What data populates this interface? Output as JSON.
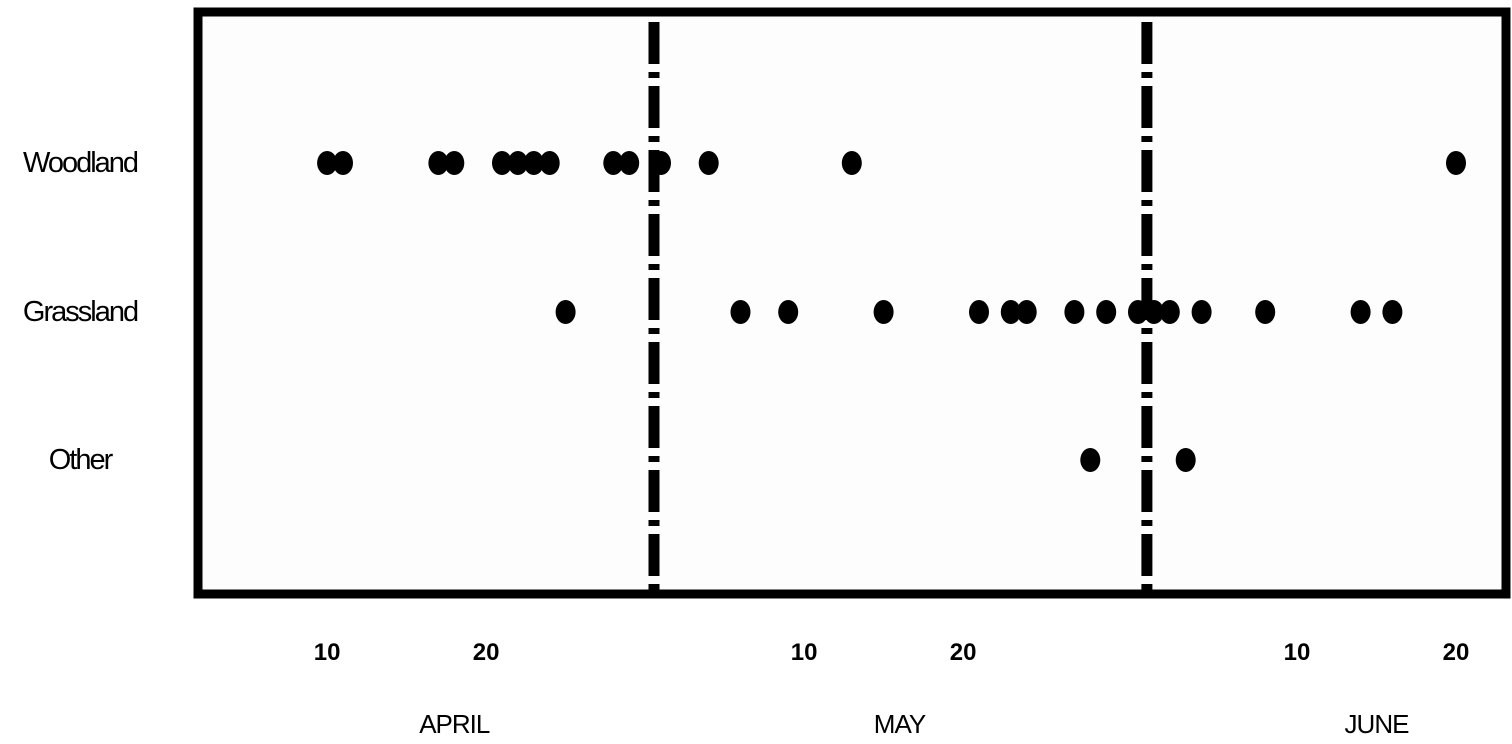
{
  "chart_data": {
    "type": "scatter",
    "title": "",
    "xlabel": "",
    "ylabel": "",
    "categories": [
      "Woodland",
      "Grassland",
      "Other"
    ],
    "x_ticks": [
      {
        "date": "04-10",
        "label": "10"
      },
      {
        "date": "04-20",
        "label": "20"
      },
      {
        "date": "05-10",
        "label": "10"
      },
      {
        "date": "05-20",
        "label": "20"
      },
      {
        "date": "06-10",
        "label": "10"
      },
      {
        "date": "06-20",
        "label": "20"
      }
    ],
    "months": [
      {
        "date": "04-18",
        "label": "APRIL"
      },
      {
        "date": "05-16",
        "label": "MAY"
      },
      {
        "date": "06-15",
        "label": "JUNE"
      }
    ],
    "month_boundaries": [
      "05-01",
      "06-01"
    ],
    "xlim": [
      "04-01",
      "06-23"
    ],
    "series": [
      {
        "category": "Woodland",
        "x": [
          "04-10",
          "04-11",
          "04-17",
          "04-18",
          "04-21",
          "04-22",
          "04-23",
          "04-24",
          "04-28",
          "04-29",
          "05-01",
          "05-04",
          "05-13",
          "06-20"
        ]
      },
      {
        "category": "Grassland",
        "x": [
          "04-25",
          "05-06",
          "05-09",
          "05-15",
          "05-21",
          "05-23",
          "05-24",
          "05-27",
          "05-29",
          "05-31",
          "06-01",
          "06-02",
          "06-04",
          "06-08",
          "06-14",
          "06-16"
        ]
      },
      {
        "category": "Other",
        "x": [
          "05-28",
          "06-03"
        ]
      }
    ],
    "grid": false,
    "legend": "none",
    "colors": {
      "points": "#000000",
      "frame": "#000000",
      "background": "#fdfdfd"
    }
  }
}
